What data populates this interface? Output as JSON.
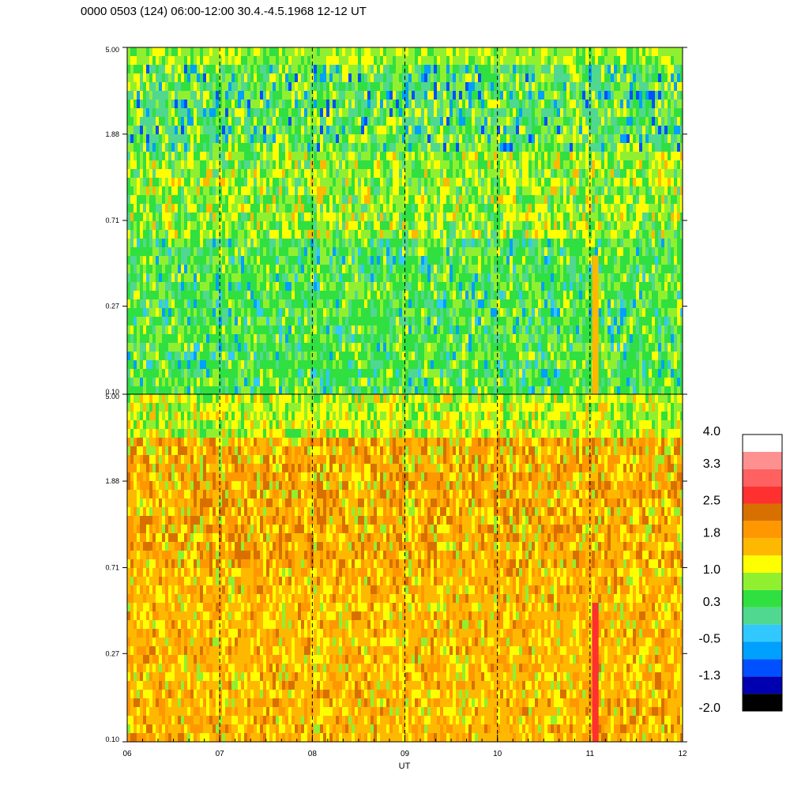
{
  "header": {
    "title": "0000 0503 (124) 06:00-12:00 30.4.-4.5.1968  12-12 UT"
  },
  "colors": {
    "blue_dark": "#0000b0",
    "blue": "#0050ff",
    "azure": "#00a0ff",
    "cyan": "#30c8ff",
    "teal": "#50d890",
    "green": "#30e040",
    "yellow_green": "#90f030",
    "yellow": "#ffff00",
    "amber": "#ffb800",
    "orange": "#ff9800",
    "dark_orange": "#d87000",
    "red": "#ff3030",
    "salmon": "#ff6060",
    "pink": "#ff9090",
    "white": "#ffffff",
    "black": "#000000"
  },
  "chart_data": {
    "type": "heatmap",
    "title": "0000 0503 (124) 06:00-12:00 30.4.-4.5.1968  12-12 UT",
    "xlabel": "UT",
    "x_ticks": [
      "06",
      "07",
      "08",
      "09",
      "10",
      "11",
      "12"
    ],
    "x_range": [
      6,
      12
    ],
    "x_dashed_lines": [
      7,
      8,
      9,
      10,
      11
    ],
    "panels": [
      {
        "name": "",
        "y_ticks": [
          "0.10",
          "0.27",
          "0.71",
          "1.88",
          "5.00"
        ],
        "y_range": [
          0.1,
          5.0
        ],
        "y_scale": "log"
      },
      {
        "name": "",
        "y_ticks": [
          "0.10",
          "0.27",
          "0.71",
          "1.88",
          "5.00"
        ],
        "y_range": [
          0.1,
          5.0
        ],
        "y_scale": "log"
      }
    ],
    "colorbar": {
      "labels": [
        "4.0",
        "3.3",
        "2.5",
        "1.8",
        "1.0",
        "0.3",
        "-0.5",
        "-1.3",
        "-2.0"
      ],
      "range": [
        -2.0,
        4.0
      ],
      "levels": [
        "#000000",
        "#0000b0",
        "#0050ff",
        "#00a0ff",
        "#30c8ff",
        "#50d890",
        "#30e040",
        "#90f030",
        "#ffff00",
        "#ffb800",
        "#ff9800",
        "#d87000",
        "#ff3030",
        "#ff6060",
        "#ff9090",
        "#ffffff"
      ]
    }
  }
}
